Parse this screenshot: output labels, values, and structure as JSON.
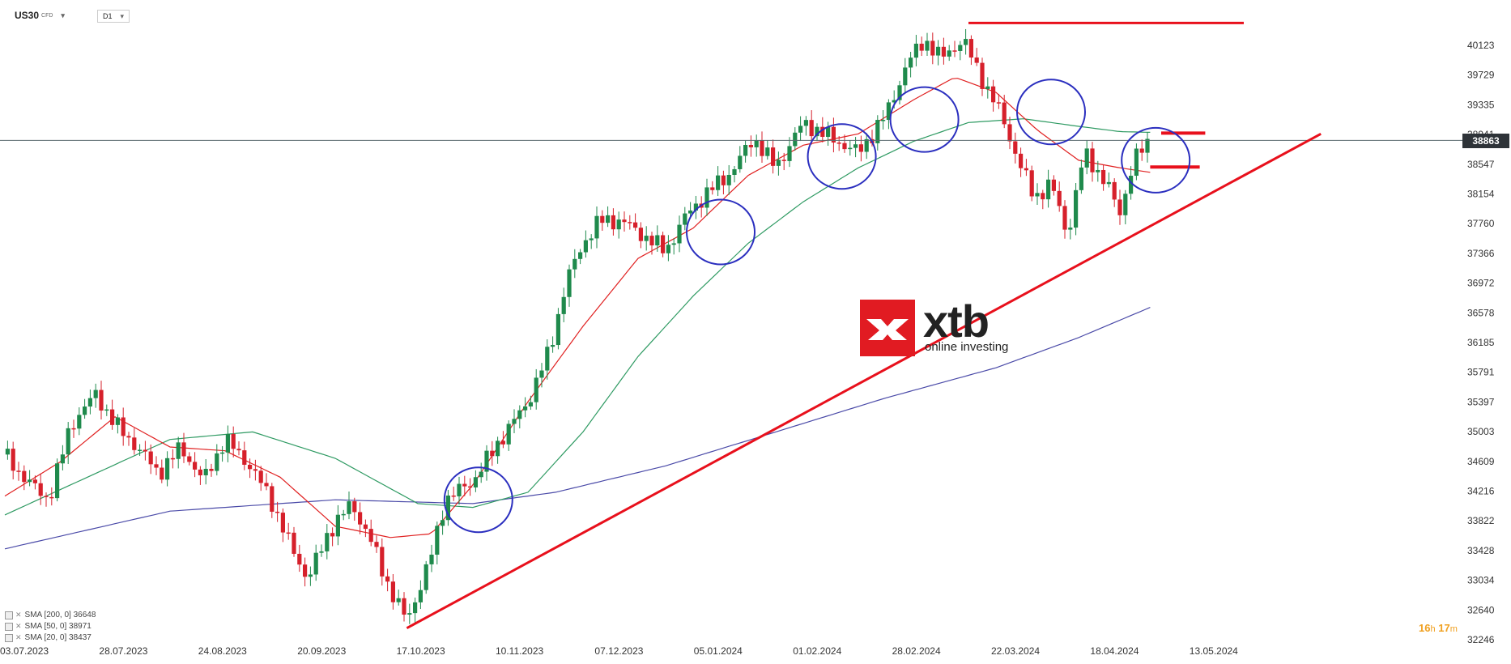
{
  "header": {
    "symbol": "US30",
    "symbol_sub": "CFD",
    "timeframe": "D1",
    "caret": "▾"
  },
  "indicators": [
    {
      "label": "SMA [200, 0] 36648",
      "color": "#4a4aa8"
    },
    {
      "label": "SMA [50, 0] 38971",
      "color": "#2e9a62"
    },
    {
      "label": "SMA [20, 0] 38437",
      "color": "#e02020"
    }
  ],
  "timer": {
    "hours": "16",
    "h_unit": "h",
    "minutes": "17",
    "m_unit": "m"
  },
  "logo": {
    "word": "xtb",
    "tagline": "online investing"
  },
  "current_price_label": "38863",
  "colors": {
    "up": "#1f8a4c",
    "down": "#d6202b",
    "sma200": "#4a4aa8",
    "sma50": "#2e9a62",
    "sma20": "#e02020",
    "circle": "#2b2fbf",
    "trend": "#e8101c",
    "grid": "#e6e6e6"
  },
  "chart_data": {
    "type": "candlestick",
    "instrument": "US30",
    "timeframe": "D1",
    "y_ticks": [
      40123,
      39729,
      39335,
      38941,
      38547,
      38154,
      37760,
      37366,
      36972,
      36578,
      36185,
      35791,
      35397,
      35003,
      34609,
      34216,
      33822,
      33428,
      33034,
      32640,
      32246
    ],
    "x_ticks": [
      "03.07.2023",
      "28.07.2023",
      "24.08.2023",
      "20.09.2023",
      "17.10.2023",
      "10.11.2023",
      "07.12.2023",
      "05.01.2024",
      "01.02.2024",
      "28.02.2024",
      "22.03.2024",
      "18.04.2024",
      "13.05.2024"
    ],
    "close_path": [
      [
        0,
        34700
      ],
      [
        8,
        34350
      ],
      [
        16,
        34100
      ],
      [
        24,
        35100
      ],
      [
        33,
        35500
      ],
      [
        40,
        35100
      ],
      [
        48,
        34800
      ],
      [
        56,
        34450
      ],
      [
        64,
        34800
      ],
      [
        72,
        34350
      ],
      [
        80,
        34900
      ],
      [
        88,
        34600
      ],
      [
        96,
        34150
      ],
      [
        103,
        33550
      ],
      [
        110,
        33050
      ],
      [
        118,
        33700
      ],
      [
        126,
        34050
      ],
      [
        133,
        33550
      ],
      [
        140,
        32900
      ],
      [
        146,
        32500
      ],
      [
        154,
        33250
      ],
      [
        160,
        34100
      ],
      [
        170,
        34350
      ],
      [
        180,
        34900
      ],
      [
        190,
        35400
      ],
      [
        198,
        36100
      ],
      [
        204,
        37000
      ],
      [
        210,
        37500
      ],
      [
        216,
        37800
      ],
      [
        224,
        37800
      ],
      [
        232,
        37600
      ],
      [
        240,
        37400
      ],
      [
        248,
        37900
      ],
      [
        256,
        38200
      ],
      [
        264,
        38450
      ],
      [
        272,
        38900
      ],
      [
        280,
        38500
      ],
      [
        290,
        39100
      ],
      [
        300,
        38900
      ],
      [
        310,
        38700
      ],
      [
        320,
        39200
      ],
      [
        328,
        39900
      ],
      [
        334,
        40200
      ],
      [
        340,
        39950
      ],
      [
        348,
        40200
      ],
      [
        356,
        39600
      ],
      [
        362,
        39200
      ],
      [
        368,
        38600
      ],
      [
        374,
        38100
      ],
      [
        380,
        38300
      ],
      [
        386,
        37600
      ],
      [
        392,
        38700
      ],
      [
        400,
        38300
      ],
      [
        405,
        37900
      ],
      [
        410,
        38600
      ],
      [
        416,
        38863
      ]
    ],
    "sma20": [
      [
        0,
        34150
      ],
      [
        20,
        34600
      ],
      [
        40,
        35200
      ],
      [
        60,
        34800
      ],
      [
        80,
        34750
      ],
      [
        100,
        34400
      ],
      [
        120,
        33750
      ],
      [
        140,
        33600
      ],
      [
        155,
        33650
      ],
      [
        170,
        34300
      ],
      [
        190,
        35400
      ],
      [
        210,
        36400
      ],
      [
        230,
        37300
      ],
      [
        250,
        37700
      ],
      [
        270,
        38400
      ],
      [
        290,
        38800
      ],
      [
        310,
        38950
      ],
      [
        330,
        39400
      ],
      [
        345,
        39700
      ],
      [
        360,
        39500
      ],
      [
        375,
        39000
      ],
      [
        390,
        38600
      ],
      [
        405,
        38500
      ],
      [
        416,
        38440
      ]
    ],
    "sma50": [
      [
        0,
        33900
      ],
      [
        30,
        34400
      ],
      [
        60,
        34900
      ],
      [
        90,
        35000
      ],
      [
        120,
        34650
      ],
      [
        150,
        34050
      ],
      [
        170,
        34000
      ],
      [
        190,
        34200
      ],
      [
        210,
        35000
      ],
      [
        230,
        36000
      ],
      [
        250,
        36800
      ],
      [
        270,
        37500
      ],
      [
        290,
        38050
      ],
      [
        310,
        38500
      ],
      [
        330,
        38850
      ],
      [
        350,
        39100
      ],
      [
        370,
        39150
      ],
      [
        390,
        39050
      ],
      [
        405,
        38980
      ],
      [
        416,
        38970
      ]
    ],
    "sma200": [
      [
        0,
        33450
      ],
      [
        60,
        33950
      ],
      [
        120,
        34100
      ],
      [
        170,
        34050
      ],
      [
        200,
        34200
      ],
      [
        240,
        34550
      ],
      [
        280,
        35000
      ],
      [
        320,
        35450
      ],
      [
        360,
        35850
      ],
      [
        390,
        36250
      ],
      [
        416,
        36650
      ]
    ],
    "trendline": [
      [
        146,
        32400
      ],
      [
        478,
        38950
      ]
    ],
    "resistance": {
      "from": 350,
      "to": 450,
      "y": 40420
    },
    "short_levels": [
      {
        "from": 420,
        "to": 436,
        "y": 38960
      },
      {
        "from": 416,
        "to": 434,
        "y": 38510
      }
    ],
    "current_price": 38863,
    "highlight_circles": [
      {
        "x": 172,
        "y": 34100
      },
      {
        "x": 260,
        "y": 37650
      },
      {
        "x": 304,
        "y": 38650
      },
      {
        "x": 334,
        "y": 39140
      },
      {
        "x": 380,
        "y": 39240
      },
      {
        "x": 418,
        "y": 38600
      }
    ],
    "x_index_per_tick": 36,
    "grid": false,
    "legend_position": "bottom-left"
  }
}
